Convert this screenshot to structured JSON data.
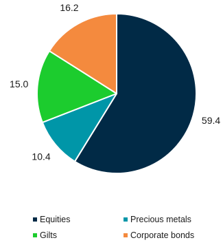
{
  "chart_data": {
    "type": "pie",
    "start_angle_deg": 0,
    "direction": "clockwise",
    "legend_position": "bottom",
    "categories": [
      "Equities",
      "Precious metals",
      "Gilts",
      "Corporate bonds"
    ],
    "values": [
      59.4,
      10.4,
      15.0,
      16.2
    ],
    "value_labels": [
      "59.4",
      "10.4",
      "15.0",
      "16.2"
    ],
    "colors": [
      "#012a46",
      "#0096a8",
      "#1ccc2e",
      "#f48a3e"
    ]
  }
}
